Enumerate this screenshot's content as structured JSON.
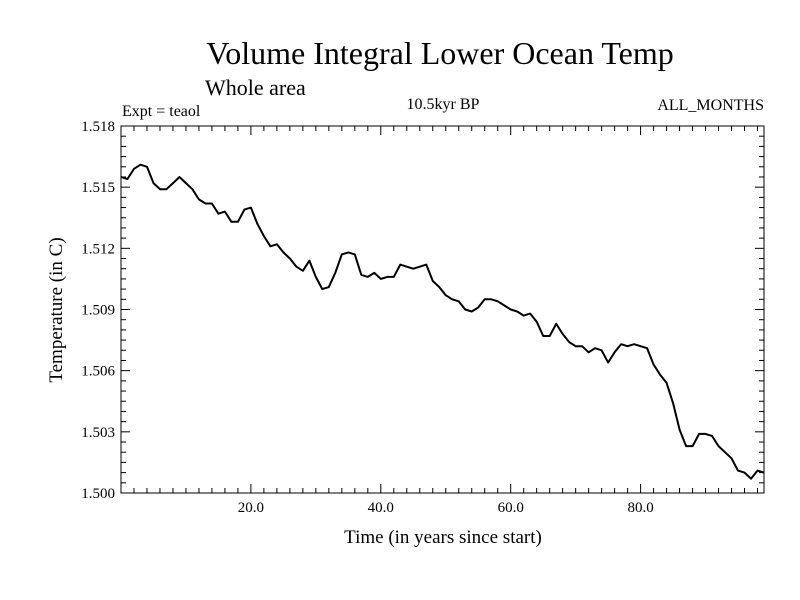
{
  "chart_data": {
    "type": "line",
    "title": "Volume Integral Lower Ocean Temp",
    "subtitle": "Whole area",
    "experiment": "Expt = teaol",
    "period": "10.5kyr BP",
    "months": "ALL_MONTHS",
    "xlabel": "Time (in years since start)",
    "ylabel": "Temperature (in C)",
    "xlim": [
      0,
      99
    ],
    "ylim": [
      1.5,
      1.518
    ],
    "x_ticks": [
      20,
      40,
      60,
      80
    ],
    "x_tick_labels": [
      "20.0",
      "40.0",
      "60.0",
      "80.0"
    ],
    "y_ticks": [
      1.5,
      1.503,
      1.506,
      1.509,
      1.512,
      1.515,
      1.518
    ],
    "y_tick_labels": [
      "1.500",
      "1.503",
      "1.506",
      "1.509",
      "1.512",
      "1.515",
      "1.518"
    ],
    "series": [
      {
        "name": "teaol",
        "x": [
          0,
          1,
          2,
          3,
          4,
          5,
          6,
          7,
          8,
          9,
          10,
          11,
          12,
          13,
          14,
          15,
          16,
          17,
          18,
          19,
          20,
          21,
          22,
          23,
          24,
          25,
          26,
          27,
          28,
          29,
          30,
          31,
          32,
          33,
          34,
          35,
          36,
          37,
          38,
          39,
          40,
          41,
          42,
          43,
          44,
          45,
          46,
          47,
          48,
          49,
          50,
          51,
          52,
          53,
          54,
          55,
          56,
          57,
          58,
          59,
          60,
          61,
          62,
          63,
          64,
          65,
          66,
          67,
          68,
          69,
          70,
          71,
          72,
          73,
          74,
          75,
          76,
          77,
          78,
          79,
          80,
          81,
          82,
          83,
          84,
          85,
          86,
          87,
          88,
          89,
          90,
          91,
          92,
          93,
          94,
          95,
          96,
          97,
          98,
          99
        ],
        "values": [
          1.5155,
          1.5154,
          1.5159,
          1.5161,
          1.516,
          1.5152,
          1.5149,
          1.5149,
          1.5152,
          1.5155,
          1.5152,
          1.5149,
          1.5144,
          1.5142,
          1.5142,
          1.5137,
          1.5138,
          1.5133,
          1.5133,
          1.5139,
          1.514,
          1.5132,
          1.5126,
          1.5121,
          1.5122,
          1.5118,
          1.5115,
          1.5111,
          1.5109,
          1.5114,
          1.5106,
          1.51,
          1.5101,
          1.5108,
          1.5117,
          1.5118,
          1.5117,
          1.5107,
          1.5106,
          1.5108,
          1.5105,
          1.5106,
          1.5106,
          1.5112,
          1.5111,
          1.511,
          1.5111,
          1.5112,
          1.5104,
          1.5101,
          1.5097,
          1.5095,
          1.5094,
          1.509,
          1.5089,
          1.5091,
          1.5095,
          1.5095,
          1.5094,
          1.5092,
          1.509,
          1.5089,
          1.5087,
          1.5088,
          1.5084,
          1.5077,
          1.5077,
          1.5083,
          1.5078,
          1.5074,
          1.5072,
          1.5072,
          1.5069,
          1.5071,
          1.507,
          1.5064,
          1.5069,
          1.5073,
          1.5072,
          1.5073,
          1.5072,
          1.5071,
          1.5063,
          1.5058,
          1.5054,
          1.5044,
          1.5031,
          1.5023,
          1.5023,
          1.5029,
          1.5029,
          1.5028,
          1.5023,
          1.502,
          1.5017,
          1.5011,
          1.501,
          1.5007,
          1.5011,
          1.501
        ]
      }
    ]
  }
}
